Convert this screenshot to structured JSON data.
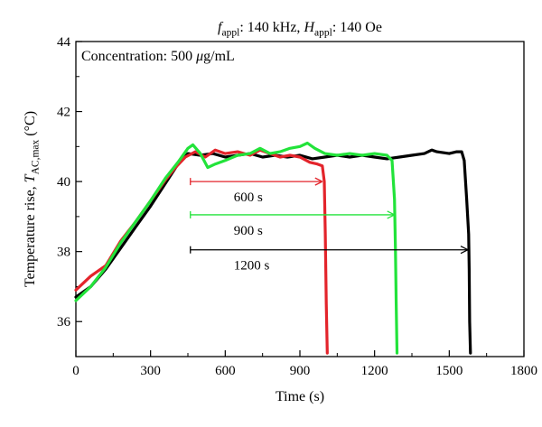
{
  "chart_data": {
    "type": "line",
    "title": {
      "parts": [
        {
          "t": "f",
          "italic": true
        },
        {
          "t": "appl",
          "sub": true
        },
        {
          "t": ": 140 kHz, "
        },
        {
          "t": "H",
          "italic": true
        },
        {
          "t": "appl",
          "sub": true
        },
        {
          "t": ": 140 Oe"
        }
      ]
    },
    "annotation_concentration": {
      "parts": [
        {
          "t": "Concentration: 500 "
        },
        {
          "t": "μ",
          "italic": true
        },
        {
          "t": "g/mL"
        }
      ]
    },
    "xlabel": "Time (s)",
    "ylabel": {
      "parts": [
        {
          "t": "Temperature rise, "
        },
        {
          "t": "T",
          "italic": true
        },
        {
          "t": "AC,max",
          "sub": true
        },
        {
          "t": " (°C)"
        }
      ]
    },
    "xlim": [
      0,
      1800
    ],
    "ylim": [
      35,
      44
    ],
    "xticks": [
      0,
      300,
      600,
      900,
      1200,
      1500,
      1800
    ],
    "yticks": [
      36,
      38,
      40,
      42,
      44
    ],
    "grid": false,
    "legend": "none",
    "series": [
      {
        "color": "#000000",
        "points": [
          [
            0,
            36.7
          ],
          [
            60,
            37.0
          ],
          [
            120,
            37.5
          ],
          [
            180,
            38.1
          ],
          [
            240,
            38.7
          ],
          [
            300,
            39.3
          ],
          [
            360,
            39.95
          ],
          [
            410,
            40.5
          ],
          [
            450,
            40.8
          ],
          [
            500,
            40.75
          ],
          [
            550,
            40.8
          ],
          [
            600,
            40.7
          ],
          [
            650,
            40.75
          ],
          [
            700,
            40.8
          ],
          [
            750,
            40.7
          ],
          [
            800,
            40.75
          ],
          [
            850,
            40.7
          ],
          [
            900,
            40.75
          ],
          [
            950,
            40.65
          ],
          [
            1000,
            40.7
          ],
          [
            1050,
            40.75
          ],
          [
            1100,
            40.7
          ],
          [
            1150,
            40.75
          ],
          [
            1200,
            40.7
          ],
          [
            1250,
            40.65
          ],
          [
            1300,
            40.7
          ],
          [
            1350,
            40.75
          ],
          [
            1400,
            40.8
          ],
          [
            1430,
            40.9
          ],
          [
            1450,
            40.85
          ],
          [
            1500,
            40.8
          ],
          [
            1530,
            40.85
          ],
          [
            1550,
            40.85
          ],
          [
            1560,
            40.6
          ],
          [
            1570,
            39.5
          ],
          [
            1578,
            38.5
          ],
          [
            1580,
            37.5
          ],
          [
            1582,
            36.0
          ],
          [
            1585,
            35.1
          ]
        ]
      },
      {
        "color": "#e3242b",
        "points": [
          [
            0,
            36.9
          ],
          [
            60,
            37.3
          ],
          [
            120,
            37.6
          ],
          [
            180,
            38.3
          ],
          [
            240,
            38.85
          ],
          [
            300,
            39.45
          ],
          [
            360,
            40.05
          ],
          [
            400,
            40.4
          ],
          [
            440,
            40.7
          ],
          [
            480,
            40.85
          ],
          [
            520,
            40.7
          ],
          [
            560,
            40.9
          ],
          [
            600,
            40.8
          ],
          [
            650,
            40.85
          ],
          [
            700,
            40.75
          ],
          [
            740,
            40.9
          ],
          [
            780,
            40.8
          ],
          [
            820,
            40.7
          ],
          [
            860,
            40.75
          ],
          [
            900,
            40.7
          ],
          [
            940,
            40.55
          ],
          [
            970,
            40.5
          ],
          [
            990,
            40.45
          ],
          [
            998,
            40.0
          ],
          [
            1002,
            38.5
          ],
          [
            1006,
            36.5
          ],
          [
            1010,
            35.1
          ]
        ]
      },
      {
        "color": "#22e33a",
        "points": [
          [
            0,
            36.6
          ],
          [
            60,
            37.0
          ],
          [
            120,
            37.55
          ],
          [
            180,
            38.25
          ],
          [
            240,
            38.85
          ],
          [
            300,
            39.45
          ],
          [
            360,
            40.1
          ],
          [
            410,
            40.55
          ],
          [
            450,
            40.95
          ],
          [
            470,
            41.05
          ],
          [
            500,
            40.8
          ],
          [
            530,
            40.4
          ],
          [
            560,
            40.5
          ],
          [
            600,
            40.6
          ],
          [
            650,
            40.75
          ],
          [
            700,
            40.8
          ],
          [
            740,
            40.95
          ],
          [
            780,
            40.8
          ],
          [
            820,
            40.85
          ],
          [
            860,
            40.95
          ],
          [
            900,
            41.0
          ],
          [
            930,
            41.1
          ],
          [
            960,
            40.95
          ],
          [
            1000,
            40.8
          ],
          [
            1050,
            40.75
          ],
          [
            1100,
            40.8
          ],
          [
            1150,
            40.75
          ],
          [
            1200,
            40.8
          ],
          [
            1250,
            40.75
          ],
          [
            1270,
            40.6
          ],
          [
            1280,
            39.5
          ],
          [
            1284,
            38.0
          ],
          [
            1287,
            36.5
          ],
          [
            1290,
            35.1
          ]
        ]
      }
    ],
    "annotations": [
      {
        "label": "600 s",
        "x_from": 460,
        "x_to": 990,
        "y": 40.0,
        "color": "#e3242b"
      },
      {
        "label": "900 s",
        "x_from": 460,
        "x_to": 1280,
        "y": 39.05,
        "color": "#22e33a"
      },
      {
        "label": "1200 s",
        "x_from": 460,
        "x_to": 1575,
        "y": 38.05,
        "color": "#000000"
      }
    ]
  }
}
